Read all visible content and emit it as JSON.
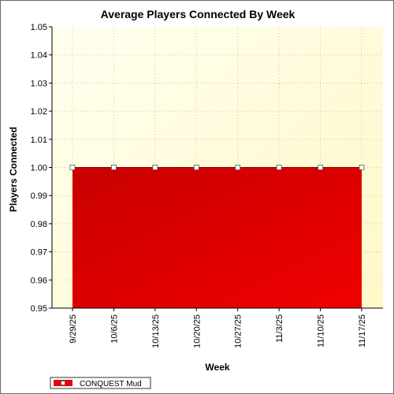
{
  "chart_data": {
    "type": "area",
    "title": "Average Players Connected By Week",
    "xlabel": "Week",
    "ylabel": "Players Connected",
    "categories": [
      "9/29/25",
      "10/6/25",
      "10/13/25",
      "10/20/25",
      "10/27/25",
      "11/3/25",
      "11/10/25",
      "11/17/25"
    ],
    "series": [
      {
        "name": "CONQUEST Mud",
        "values": [
          1.0,
          1.0,
          1.0,
          1.0,
          1.0,
          1.0,
          1.0,
          1.0
        ]
      }
    ],
    "ylim": [
      0.95,
      1.05
    ],
    "yticks": [
      "0.95",
      "0.96",
      "0.97",
      "0.98",
      "0.99",
      "1.00",
      "1.01",
      "1.02",
      "1.03",
      "1.04",
      "1.05"
    ],
    "grid": true,
    "legend_position": "bottom-left",
    "colors": {
      "fill": "#e8000a",
      "fill_dark": "#c80000",
      "plot_background": "#fffde8",
      "grid": "#c8c8a0",
      "marker_fill": "#ffffff",
      "axis": "#000000"
    }
  }
}
